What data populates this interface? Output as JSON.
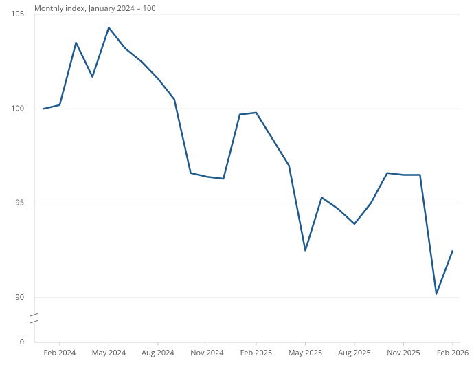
{
  "chart_data": {
    "type": "line",
    "subtitle": "Monthly index, January 2024 = 100",
    "categories": [
      null,
      "Feb 2024",
      null,
      null,
      "May 2024",
      null,
      null,
      "Aug 2024",
      null,
      null,
      "Nov 2024",
      null,
      null,
      "Feb 2025",
      null,
      null,
      "May 2025",
      null,
      null,
      "Aug 2025",
      null,
      null,
      "Nov 2025",
      null,
      null,
      "Feb 2026"
    ],
    "series": [
      {
        "color": "#1f5a8c",
        "values": [
          100.0,
          100.2,
          103.5,
          101.7,
          104.3,
          103.2,
          102.5,
          101.6,
          100.5,
          96.6,
          96.4,
          96.3,
          99.7,
          99.8,
          98.4,
          97.0,
          92.5,
          95.3,
          94.7,
          93.9,
          95.0,
          96.6,
          96.5,
          96.5,
          90.2,
          92.5
        ]
      }
    ],
    "ylim": [
      0,
      105
    ],
    "yticks": [
      0,
      90,
      95,
      100,
      105
    ],
    "axis_break": [
      0,
      88.8
    ],
    "grid": true
  }
}
